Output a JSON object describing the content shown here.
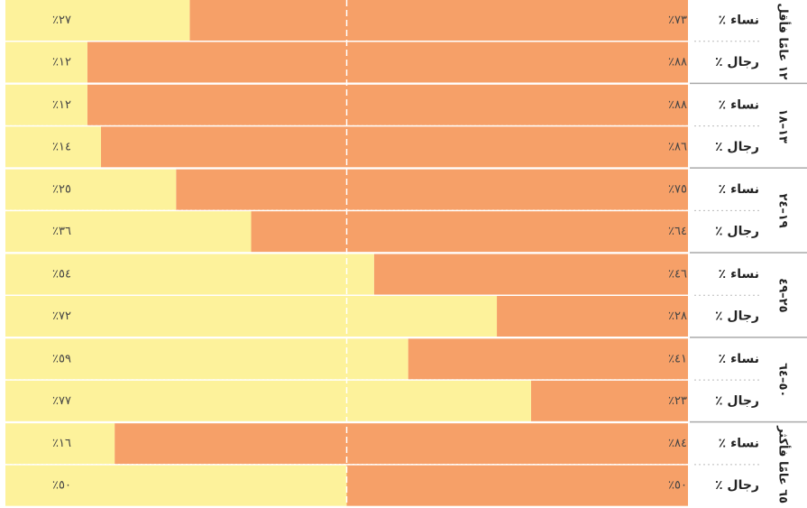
{
  "chart_data": {
    "type": "bar",
    "orientation": "horizontal",
    "stacked": true,
    "xlim": [
      0,
      100
    ],
    "reference_line": 50,
    "groups": [
      "١٢ عامًا فأقل",
      "١٣–١٨",
      "١٩–٢٤",
      "٢٥–٤٩",
      "٥٠–٦٤",
      "٦٥ عامًا فأكثر"
    ],
    "categories": [
      "نساء ٪",
      "رجال ٪",
      "نساء ٪",
      "رجال ٪",
      "نساء ٪",
      "رجال ٪",
      "نساء ٪",
      "رجال ٪",
      "نساء ٪",
      "رجال ٪",
      "نساء ٪",
      "رجال ٪"
    ],
    "series": [
      {
        "color": "#f6a068",
        "values": [
          73,
          88,
          88,
          86,
          75,
          64,
          46,
          28,
          41,
          23,
          84,
          50
        ],
        "value_labels": [
          "٧٣٪",
          "٨٨٪",
          "٨٨٪",
          "٨٦٪",
          "٧٥٪",
          "٦٤٪",
          "٤٦٪",
          "٢٨٪",
          "٤١٪",
          "٢٣٪",
          "٨٤٪",
          "٥٠٪"
        ]
      },
      {
        "color": "#fdf29b",
        "values": [
          27,
          12,
          12,
          14,
          25,
          36,
          54,
          72,
          59,
          77,
          16,
          50
        ],
        "value_labels": [
          "٢٧٪",
          "١٢٪",
          "١٢٪",
          "١٤٪",
          "٢٥٪",
          "٣٦٪",
          "٥٤٪",
          "٧٢٪",
          "٥٩٪",
          "٧٧٪",
          "١٦٪",
          "٥٠٪"
        ]
      }
    ]
  }
}
